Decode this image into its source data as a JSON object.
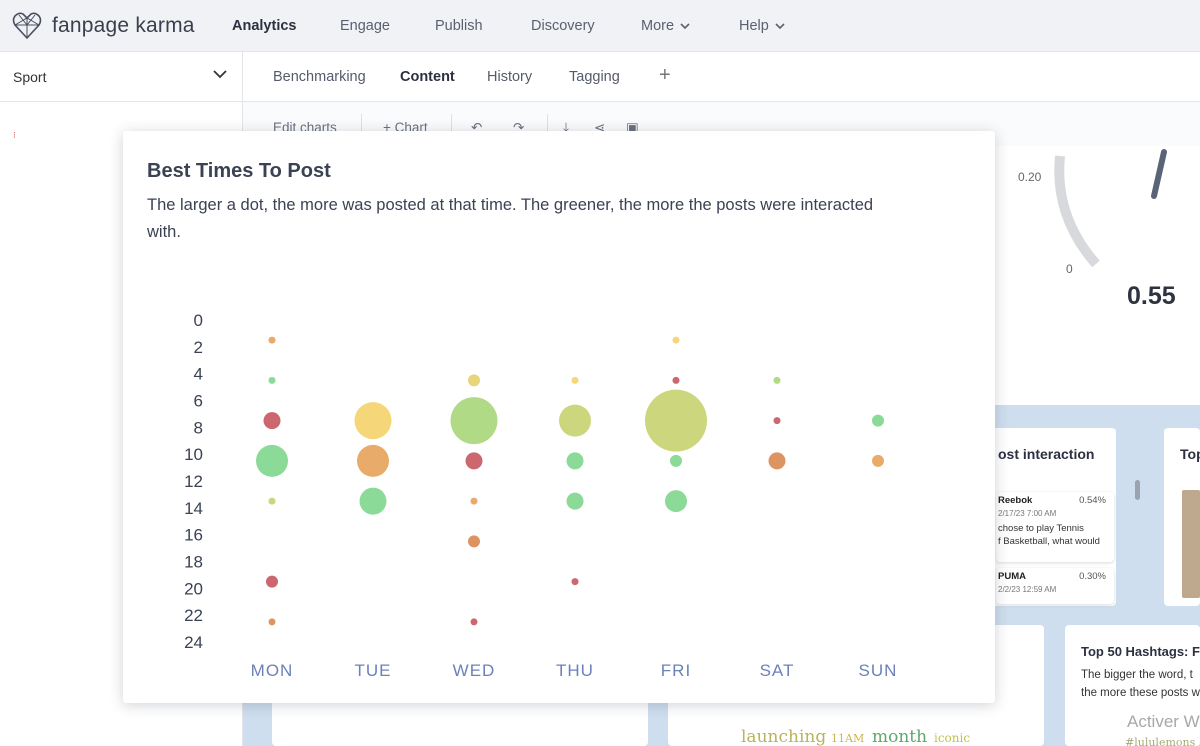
{
  "app": {
    "name": "fanpage karma"
  },
  "nav": {
    "items": [
      {
        "label": "Analytics",
        "active": true
      },
      {
        "label": "Engage"
      },
      {
        "label": "Publish"
      },
      {
        "label": "Discovery"
      },
      {
        "label": "More"
      },
      {
        "label": "Help"
      }
    ]
  },
  "sidebar": {
    "selected": "Sport"
  },
  "tabs": {
    "items": [
      {
        "label": "Benchmarking"
      },
      {
        "label": "Content",
        "active": true
      },
      {
        "label": "History"
      },
      {
        "label": "Tagging"
      }
    ],
    "add_label": "+"
  },
  "toolbar": {
    "edit_charts": "Edit charts",
    "add_chart": "+ Chart"
  },
  "gauge": {
    "value": "0.55",
    "tick_020": "0.20",
    "tick_0": "0"
  },
  "post_interaction": {
    "title": "ost interaction",
    "posts": [
      {
        "name": "Reebok",
        "pct": "0.54%",
        "date": "2/17/23 7:00 AM",
        "text_line1": "chose to play Tennis",
        "text_line2": "f Basketball, what would"
      },
      {
        "name": "PUMA",
        "pct": "0.30%",
        "date": "2/2/23 12:59 AM"
      }
    ]
  },
  "top_card": {
    "title": "Top"
  },
  "hashtags": {
    "title": "Top 50 Hashtags: F",
    "desc_line1": "The bigger the word, t",
    "desc_line2": "the more these posts w"
  },
  "word_cloud": [
    "launching",
    "11AM",
    "month",
    "iconic",
    "#lululemons"
  ],
  "watermark": "Activer W",
  "modal": {
    "title": "Best Times To Post",
    "description": "The larger a dot, the more was posted at that time. The greener, the more the posts were interacted with."
  },
  "colors": {
    "green": "#7fd68d",
    "lime": "#a8d67a",
    "olive": "#c6d26f",
    "yellow": "#f4d36b",
    "orange": "#e7a259",
    "orange_red": "#d98852",
    "red": "#c8575f"
  },
  "chart_data": {
    "type": "scatter",
    "x_categories": [
      "MON",
      "TUE",
      "WED",
      "THU",
      "FRI",
      "SAT",
      "SUN"
    ],
    "y_ticks": [
      0,
      2,
      4,
      6,
      8,
      10,
      12,
      14,
      16,
      18,
      20,
      22,
      24
    ],
    "ylim": [
      0,
      24
    ],
    "y_reversed": true,
    "points": [
      {
        "day": "MON",
        "hour": 1.5,
        "size": 1,
        "color": "#e7a259"
      },
      {
        "day": "MON",
        "hour": 4.5,
        "size": 1,
        "color": "#7fd68d"
      },
      {
        "day": "MON",
        "hour": 7.5,
        "size": 3,
        "color": "#c8575f"
      },
      {
        "day": "MON",
        "hour": 10.5,
        "size": 6,
        "color": "#7fd68d"
      },
      {
        "day": "MON",
        "hour": 13.5,
        "size": 1,
        "color": "#c6d26f"
      },
      {
        "day": "MON",
        "hour": 19.5,
        "size": 2,
        "color": "#c8575f"
      },
      {
        "day": "MON",
        "hour": 22.5,
        "size": 1,
        "color": "#d98852"
      },
      {
        "day": "TUE",
        "hour": 7.5,
        "size": 7,
        "color": "#f4d36b"
      },
      {
        "day": "TUE",
        "hour": 10.5,
        "size": 6,
        "color": "#e7a259"
      },
      {
        "day": "TUE",
        "hour": 13.5,
        "size": 5,
        "color": "#7fd68d"
      },
      {
        "day": "WED",
        "hour": 4.5,
        "size": 2,
        "color": "#e5cf6a"
      },
      {
        "day": "WED",
        "hour": 7.5,
        "size": 9,
        "color": "#a8d67a"
      },
      {
        "day": "WED",
        "hour": 10.5,
        "size": 3,
        "color": "#c8575f"
      },
      {
        "day": "WED",
        "hour": 13.5,
        "size": 1,
        "color": "#e7a259"
      },
      {
        "day": "WED",
        "hour": 16.5,
        "size": 2,
        "color": "#d98852"
      },
      {
        "day": "WED",
        "hour": 22.5,
        "size": 1,
        "color": "#c8575f"
      },
      {
        "day": "THU",
        "hour": 4.5,
        "size": 1,
        "color": "#f4d36b"
      },
      {
        "day": "THU",
        "hour": 7.5,
        "size": 6,
        "color": "#c6d26f"
      },
      {
        "day": "THU",
        "hour": 10.5,
        "size": 3,
        "color": "#7fd68d"
      },
      {
        "day": "THU",
        "hour": 13.5,
        "size": 3,
        "color": "#7fd68d"
      },
      {
        "day": "THU",
        "hour": 19.5,
        "size": 1,
        "color": "#c8575f"
      },
      {
        "day": "FRI",
        "hour": 1.5,
        "size": 1,
        "color": "#f4d36b"
      },
      {
        "day": "FRI",
        "hour": 4.5,
        "size": 1,
        "color": "#c8575f"
      },
      {
        "day": "FRI",
        "hour": 7.5,
        "size": 12,
        "color": "#c6d26f"
      },
      {
        "day": "FRI",
        "hour": 10.5,
        "size": 2,
        "color": "#7fd68d"
      },
      {
        "day": "FRI",
        "hour": 13.5,
        "size": 4,
        "color": "#7fd68d"
      },
      {
        "day": "SAT",
        "hour": 4.5,
        "size": 1,
        "color": "#a8d67a"
      },
      {
        "day": "SAT",
        "hour": 7.5,
        "size": 1,
        "color": "#c8575f"
      },
      {
        "day": "SAT",
        "hour": 10.5,
        "size": 3,
        "color": "#d98852"
      },
      {
        "day": "SUN",
        "hour": 7.5,
        "size": 2,
        "color": "#7fd68d"
      },
      {
        "day": "SUN",
        "hour": 10.5,
        "size": 2,
        "color": "#e7a259"
      }
    ]
  }
}
